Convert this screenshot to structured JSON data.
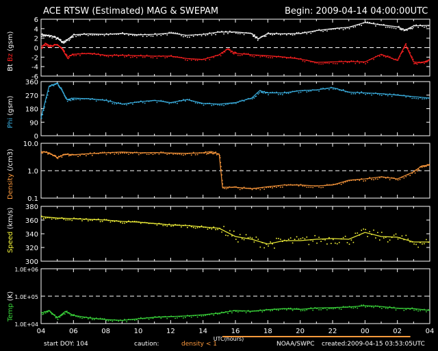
{
  "header": {
    "title": "ACE RTSW (Estimated) MAG & SWEPAM",
    "begin": "Begin: 2009-04-14 04:00:00UTC"
  },
  "footer": {
    "start_doy": "start DOY: 104",
    "caution": "caution:",
    "density_note": "density < 1",
    "source": "NOAA/SWPC",
    "created": "created:2009-04-15 03:53:05UTC"
  },
  "colors": {
    "bt": "#ffffff",
    "bz": "#ff2020",
    "phi": "#3cb4e6",
    "density": "#ff9a3c",
    "speed": "#ffff3c",
    "temp": "#3cdc3c",
    "caution": "#ff9a3c"
  },
  "chart_data": [
    {
      "type": "scatter",
      "panel": "bt_bz",
      "ylabel_parts": [
        "Bt",
        "Bz",
        "(gsm)"
      ],
      "ylim": [
        -6,
        6
      ],
      "yticks": [
        "6",
        "4",
        "2",
        "0",
        "-2",
        "-4",
        "-6"
      ],
      "reference_line": 0,
      "series": [
        {
          "name": "Bt",
          "x": [
            4,
            4.3,
            4.6,
            5,
            5.3,
            5.6,
            6,
            7,
            8,
            9,
            10,
            11,
            12,
            13,
            14,
            15,
            16,
            17,
            17.4,
            18,
            19,
            20,
            21,
            22,
            23,
            24,
            25,
            26,
            26.5,
            27,
            28
          ],
          "y": [
            2.8,
            2.6,
            2.5,
            2.0,
            1.2,
            1.6,
            2.7,
            2.9,
            2.8,
            3.0,
            2.7,
            2.8,
            3.1,
            2.6,
            2.8,
            3.3,
            3.3,
            3.0,
            1.8,
            3.0,
            2.9,
            3.0,
            3.6,
            4.0,
            4.3,
            5.3,
            4.8,
            4.4,
            3.7,
            4.6,
            4.7
          ]
        },
        {
          "name": "Bz",
          "x": [
            4,
            4.3,
            4.6,
            5,
            5.3,
            5.6,
            6,
            7,
            8,
            9,
            10,
            11,
            12,
            13,
            14,
            15,
            15.5,
            16,
            17,
            18,
            19,
            20,
            21,
            22,
            23,
            24,
            25,
            26,
            26.5,
            27,
            27.5,
            28
          ],
          "y": [
            0.2,
            0.9,
            0.3,
            0.7,
            -0.3,
            -2.0,
            -1.4,
            -1.2,
            -1.6,
            -1.6,
            -1.7,
            -1.8,
            -1.8,
            -2.3,
            -2.5,
            -1.5,
            -0.3,
            -1.2,
            -1.5,
            -1.7,
            -2.0,
            -2.4,
            -3.1,
            -3.0,
            -2.9,
            -3.0,
            -1.4,
            -2.7,
            0.7,
            -3.0,
            -3.2,
            -2.5
          ]
        }
      ]
    },
    {
      "type": "scatter",
      "panel": "phi",
      "ylabel_parts": [
        "Phi",
        "(gsm)"
      ],
      "ylim": [
        0,
        360
      ],
      "yticks": [
        "360",
        "270",
        "180",
        "90",
        "0"
      ],
      "series": [
        {
          "name": "Phi",
          "x": [
            4,
            4.5,
            5,
            5.3,
            5.6,
            6,
            7,
            8,
            9,
            10,
            11,
            12,
            13,
            14,
            15,
            16,
            17,
            17.5,
            18,
            19,
            20,
            21,
            22,
            23,
            24,
            25,
            26,
            27,
            28
          ],
          "y": [
            120,
            330,
            350,
            300,
            240,
            250,
            245,
            235,
            210,
            225,
            235,
            220,
            240,
            215,
            210,
            220,
            250,
            300,
            285,
            285,
            300,
            305,
            320,
            290,
            285,
            280,
            270,
            260,
            250
          ]
        }
      ]
    },
    {
      "type": "scatter",
      "panel": "density",
      "ylabel_parts": [
        "Density",
        "(/cm3)"
      ],
      "ylim": [
        0.1,
        10
      ],
      "yscale": "log",
      "yticks": [
        "10.0",
        "1.0",
        "0.1"
      ],
      "reference_line": 1.0,
      "series": [
        {
          "name": "Density",
          "x": [
            4,
            4.5,
            5,
            5.5,
            6,
            7,
            8,
            9,
            10,
            11,
            12,
            13,
            14,
            14.5,
            15,
            15.2,
            16,
            17,
            18,
            19,
            20,
            21,
            22,
            23,
            24,
            25,
            26,
            27,
            27.5,
            28
          ],
          "y": [
            5.0,
            4.5,
            3.0,
            4.0,
            3.8,
            4.2,
            4.5,
            4.8,
            4.5,
            4.6,
            4.4,
            4.3,
            4.5,
            5.0,
            4.0,
            0.25,
            0.25,
            0.22,
            0.26,
            0.3,
            0.3,
            0.28,
            0.3,
            0.45,
            0.5,
            0.6,
            0.5,
            0.9,
            1.5,
            1.6
          ]
        }
      ]
    },
    {
      "type": "scatter",
      "panel": "speed",
      "ylabel_parts": [
        "Speed",
        "(km/s)"
      ],
      "ylim": [
        300,
        380
      ],
      "yticks": [
        "380",
        "360",
        "340",
        "320",
        "300"
      ],
      "series": [
        {
          "name": "Speed",
          "x": [
            4,
            5,
            6,
            7,
            8,
            9,
            10,
            11,
            12,
            13,
            14,
            15,
            16,
            17,
            18,
            19,
            20,
            21,
            22,
            23,
            24,
            25,
            26,
            27,
            28
          ],
          "y": [
            365,
            363,
            362,
            361,
            360,
            358,
            357,
            355,
            353,
            352,
            350,
            348,
            336,
            332,
            325,
            330,
            330,
            332,
            333,
            332,
            342,
            336,
            335,
            328,
            328
          ]
        }
      ]
    },
    {
      "type": "scatter",
      "panel": "temp",
      "ylabel_parts": [
        "Temp",
        "(K)"
      ],
      "ylim": [
        10000,
        1000000
      ],
      "yscale": "log",
      "yticks": [
        "1.0E+06",
        "1.0E+05",
        "1.0E+04"
      ],
      "reference_line": 100000,
      "series": [
        {
          "name": "Temp",
          "x": [
            4,
            4.5,
            5,
            5.5,
            6,
            7,
            8,
            9,
            10,
            11,
            12,
            13,
            14,
            15,
            16,
            17,
            18,
            19,
            20,
            21,
            22,
            23,
            24,
            25,
            26,
            27,
            28
          ],
          "y": [
            24000,
            30000,
            16000,
            28000,
            20000,
            16000,
            14000,
            13000,
            15000,
            17000,
            18000,
            19000,
            21000,
            24000,
            30000,
            28000,
            32000,
            35000,
            33000,
            37000,
            38000,
            40000,
            45000,
            42000,
            36000,
            35000,
            30000
          ]
        }
      ]
    }
  ],
  "xaxis": {
    "xlabel": "UTC(hours)",
    "xlim": [
      4,
      28
    ],
    "tick_labels": [
      "04",
      "06",
      "08",
      "10",
      "12",
      "14",
      "16",
      "18",
      "20",
      "22",
      "00",
      "02",
      "04"
    ]
  }
}
